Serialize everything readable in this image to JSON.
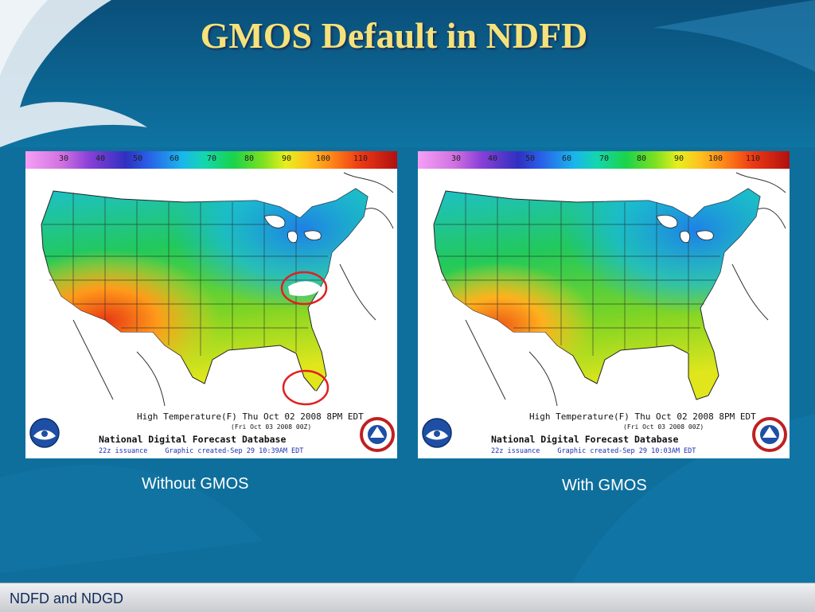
{
  "slide": {
    "title": "GMOS Default in NDFD",
    "footer": "NDFD and NDGD"
  },
  "scale": {
    "ticks": [
      "30",
      "40",
      "50",
      "60",
      "70",
      "80",
      "90",
      "100",
      "110"
    ]
  },
  "panels": {
    "left": {
      "caption": "Without GMOS",
      "line1": "High Temperature(F) Thu Oct 02 2008  8PM EDT",
      "line2": "(Fri Oct 03 2008 00Z)",
      "line3": "National Digital Forecast Database",
      "issuance": "22z issuance",
      "created": "Graphic created-Sep 29 10:39AM EDT"
    },
    "right": {
      "caption": "With GMOS",
      "line1": "High Temperature(F) Thu Oct 02 2008  8PM EDT",
      "line2": "(Fri Oct 03 2008 00Z)",
      "line3": "National Digital Forecast Database",
      "issuance": "22z issuance",
      "created": "Graphic created-Sep 29 10:03AM EDT"
    }
  },
  "logos": {
    "noaa": "NOAA",
    "nws": "NATIONAL WEATHER SERVICE"
  },
  "colors": {
    "title": "#f6e27a",
    "background": "#0d6f9c",
    "highlight_circle": "#e02020"
  }
}
